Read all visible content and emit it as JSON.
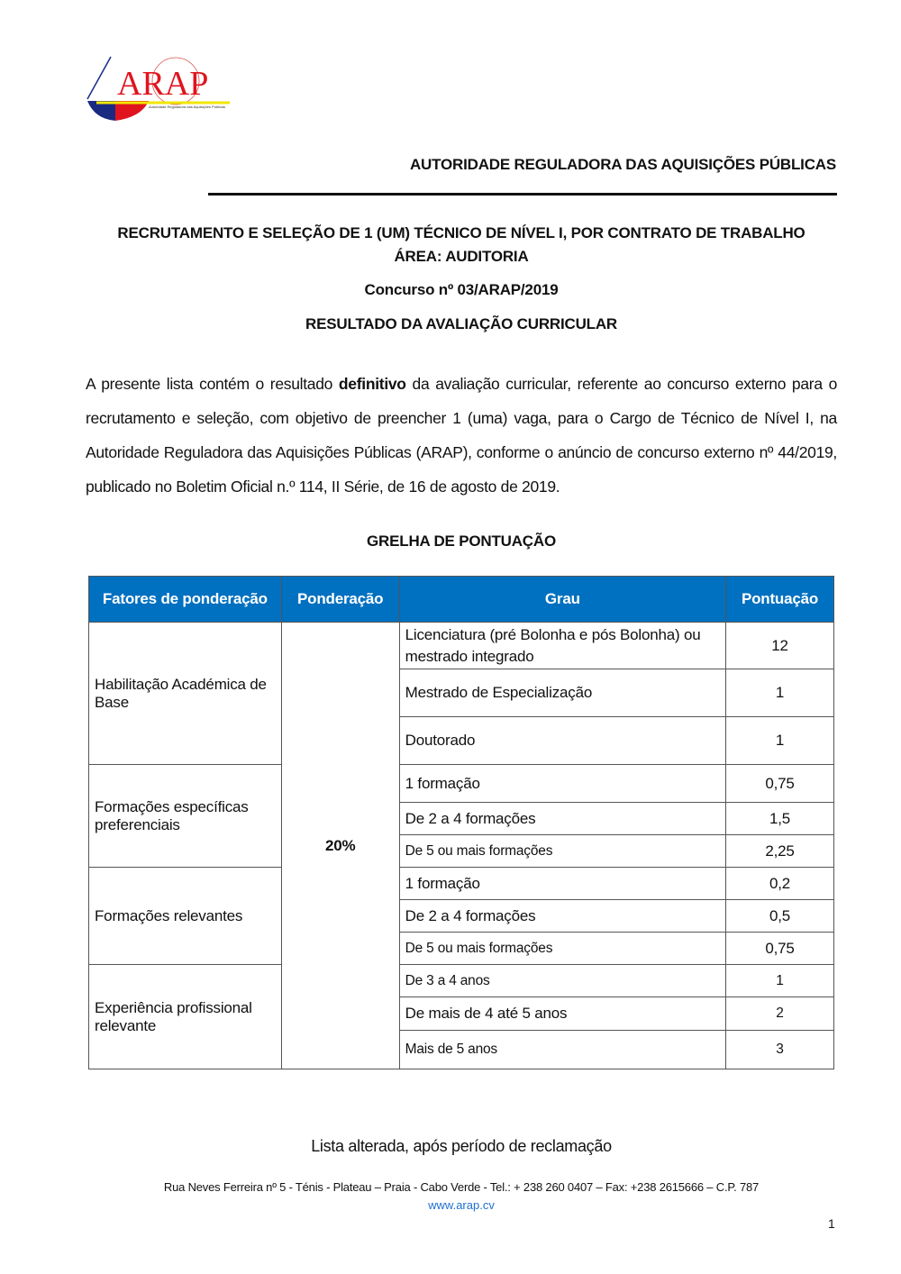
{
  "header": {
    "logo_text": "ARAP",
    "logo_subtitle": "Autoridade Reguladora das Aquisições Públicas",
    "organization": "AUTORIDADE REGULADORA DAS AQUISIÇÕES PÚBLICAS"
  },
  "title": {
    "line1": "RECRUTAMENTO E SELEÇÃO DE 1 (UM) TÉCNICO DE NÍVEL I, POR CONTRATO DE TRABALHO",
    "line2": "ÁREA: AUDITORIA",
    "contest": "Concurso nº 03/ARAP/2019",
    "result": "RESULTADO DA AVALIAÇÃO CURRICULAR"
  },
  "body": {
    "before": "A presente lista contém o resultado ",
    "bold": "definitivo",
    "after": " da avaliação curricular, referente ao concurso externo para o recrutamento e seleção, com objetivo de preencher 1 (uma) vaga, para o Cargo de Técnico de Nível I, na Autoridade Reguladora das Aquisições Públicas (ARAP), conforme o anúncio de concurso externo nº 44/2019, publicado no Boletim Oficial n.º 114, II Série, de 16 de agosto de 2019."
  },
  "grid_title": "GRELHA DE PONTUAÇÃO",
  "table": {
    "headers": [
      "Fatores de ponderação",
      "Ponderação",
      "Grau",
      "Pontuação"
    ],
    "weight": "20%",
    "factors": [
      "Habilitação Académica de Base",
      "Formações específicas preferenciais",
      "Formações relevantes",
      "Experiência profissional relevante"
    ],
    "rows": [
      {
        "grau": "Licenciatura (pré Bolonha e pós Bolonha) ou mestrado integrado",
        "pontos": "12"
      },
      {
        "grau": "Mestrado de Especialização",
        "pontos": "1"
      },
      {
        "grau": "Doutorado",
        "pontos": "1"
      },
      {
        "grau": "1 formação",
        "pontos": "0,75"
      },
      {
        "grau": "De 2 a 4 formações",
        "pontos": "1,5"
      },
      {
        "grau": "De 5 ou mais formações",
        "pontos": "2,25"
      },
      {
        "grau": "1 formação",
        "pontos": "0,2"
      },
      {
        "grau": "De 2 a 4 formações",
        "pontos": "0,5"
      },
      {
        "grau": "De 5 ou mais formações",
        "pontos": "0,75"
      },
      {
        "grau": "De 3 a 4 anos",
        "pontos": "1"
      },
      {
        "grau": "De mais de 4  até 5 anos",
        "pontos": "2"
      },
      {
        "grau": "Mais de 5  anos",
        "pontos": "3"
      }
    ]
  },
  "note": "Lista alterada, após período de reclamação",
  "footer": {
    "address": "Rua Neves Ferreira nº 5 - Ténis - Plateau – Praia - Cabo Verde - Tel.: + 238 260 0407 – Fax: +238 2615666 – C.P. 787",
    "url": "www.arap.cv",
    "page": "1"
  }
}
